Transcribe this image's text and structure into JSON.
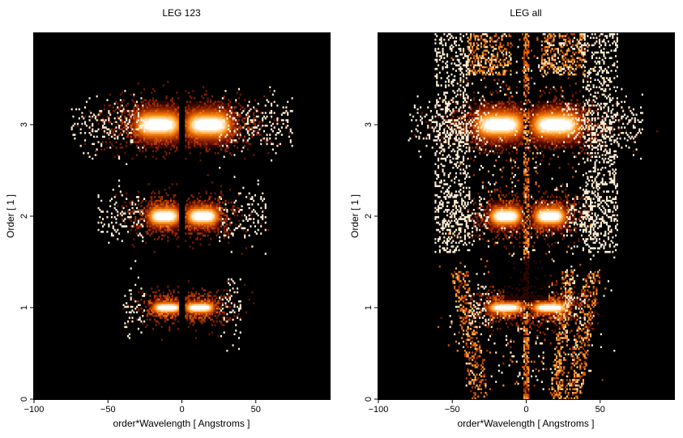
{
  "chart_data": [
    {
      "type": "heatmap",
      "title": "LEG 123",
      "xlabel": "order*Wavelength [ Angstroms ]",
      "ylabel": "Order [ 1 ]",
      "xlim": [
        -100,
        100
      ],
      "ylim": [
        0,
        4
      ],
      "xticks": [
        -100,
        -50,
        0,
        50
      ],
      "yticks": [
        0,
        1,
        2,
        3
      ],
      "colormap": [
        "#000000",
        "#5a0b00",
        "#a83200",
        "#e86a00",
        "#ffb347",
        "#ffffff"
      ],
      "bands": [
        {
          "order": 1,
          "center_pos": 12,
          "center_neg": -10,
          "halfwidth": 10,
          "gap": 2,
          "scatter_extent": 60
        },
        {
          "order": 2,
          "center_pos": 14,
          "center_neg": -12,
          "halfwidth": 11,
          "gap": 2,
          "scatter_extent": 55
        },
        {
          "order": 3,
          "center_pos": 18,
          "center_neg": -16,
          "halfwidth": 16,
          "gap": 2,
          "scatter_extent": 55
        }
      ],
      "zero_order_column": false,
      "background_wings": false
    },
    {
      "type": "heatmap",
      "title": "LEG all",
      "xlabel": "order*Wavelength [ Angstroms ]",
      "ylabel": "Order [ 1 ]",
      "xlim": [
        -100,
        100
      ],
      "ylim": [
        0,
        4
      ],
      "xticks": [
        -100,
        -50,
        0,
        50
      ],
      "yticks": [
        0,
        1,
        2,
        3
      ],
      "colormap": [
        "#000000",
        "#5a0b00",
        "#a83200",
        "#e86a00",
        "#ffb347",
        "#ffffff"
      ],
      "bands": [
        {
          "order": 1,
          "center_pos": 16,
          "center_neg": -14,
          "halfwidth": 12,
          "gap": 2,
          "scatter_extent": 60
        },
        {
          "order": 2,
          "center_pos": 16,
          "center_neg": -14,
          "halfwidth": 11,
          "gap": 2,
          "scatter_extent": 60
        },
        {
          "order": 3,
          "center_pos": 20,
          "center_neg": -18,
          "halfwidth": 17,
          "gap": 2,
          "scatter_extent": 60
        }
      ],
      "zero_order_column": true,
      "background_wings": true
    }
  ]
}
